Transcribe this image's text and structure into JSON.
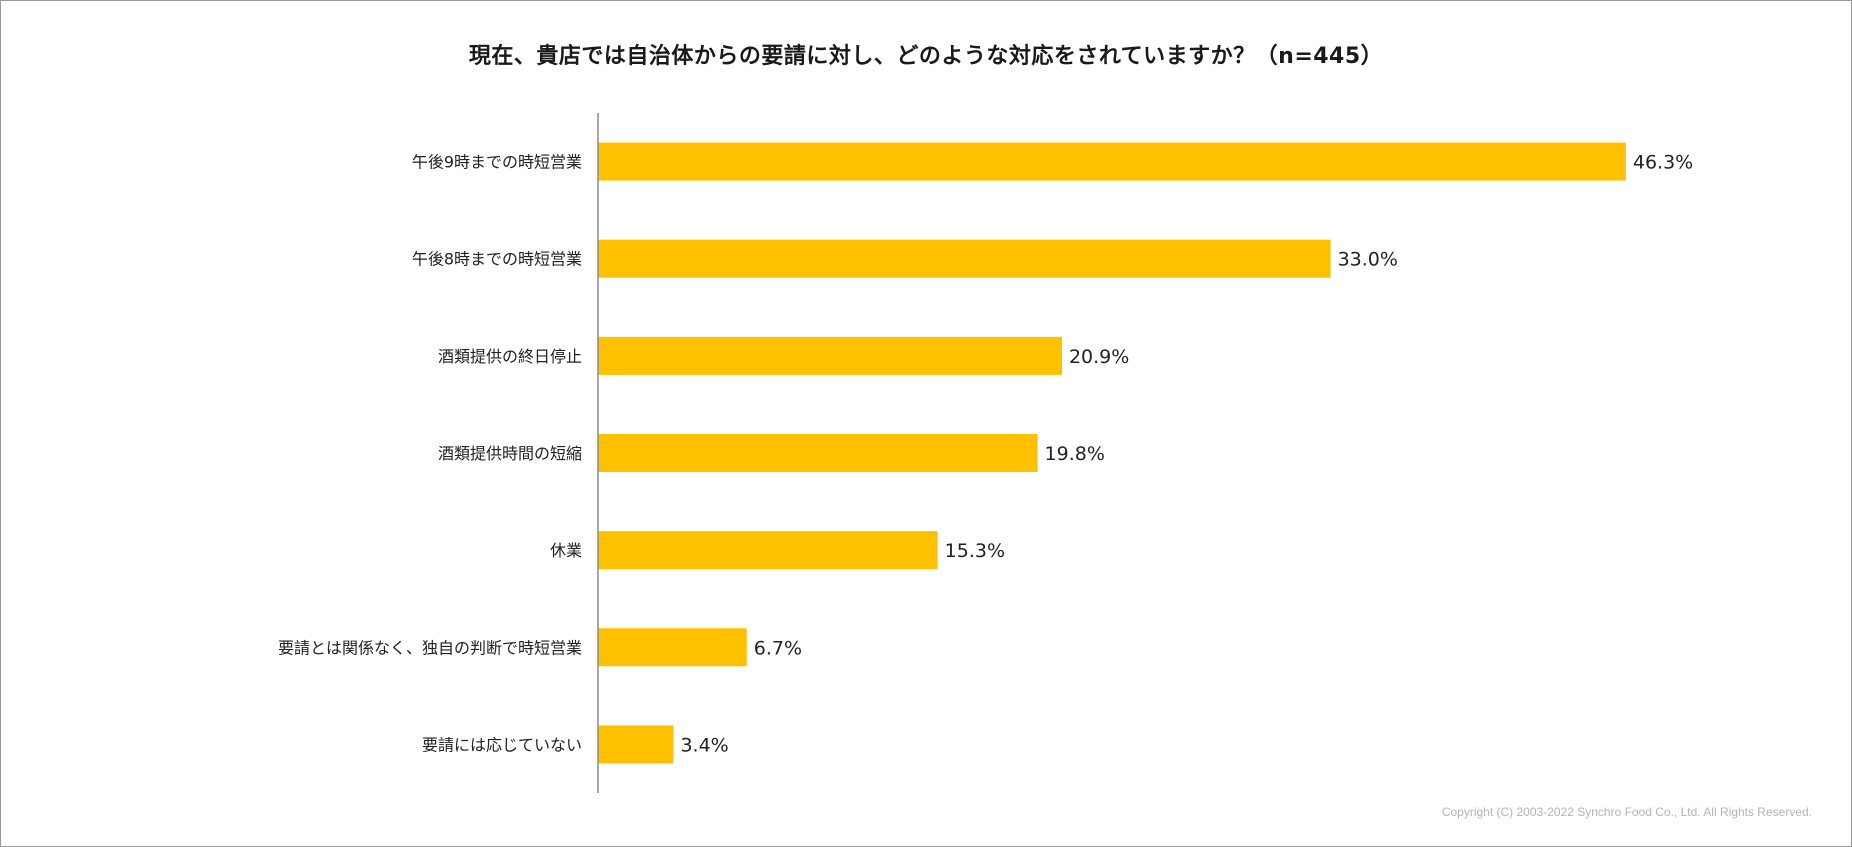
{
  "chart_data": {
    "type": "bar",
    "orientation": "horizontal",
    "title": "現在、貴店では自治体からの要請に対し、どのような対応をされていますか？（n=445）",
    "categories": [
      "午後9時までの時短営業",
      "午後8時までの時短営業",
      "酒類提供の終日停止",
      "酒類提供時間の短縮",
      "休業",
      "要請とは関係なく、独自の判断で時短営業",
      "要請には応じていない"
    ],
    "values": [
      46.3,
      33.0,
      20.9,
      19.8,
      15.3,
      6.7,
      3.4
    ],
    "value_labels": [
      "46.3%",
      "33.0%",
      "20.9%",
      "19.8%",
      "15.3%",
      "6.7%",
      "3.4%"
    ],
    "unit": "%",
    "xlim": [
      0,
      50
    ],
    "grid": false,
    "legend": "none",
    "bar_color": "#FFC000",
    "axis_color": "#8c8c8c"
  },
  "footer": {
    "copyright": "Copyright (C) 2003-2022   Synchro Food Co., Ltd. All Rights Reserved."
  }
}
